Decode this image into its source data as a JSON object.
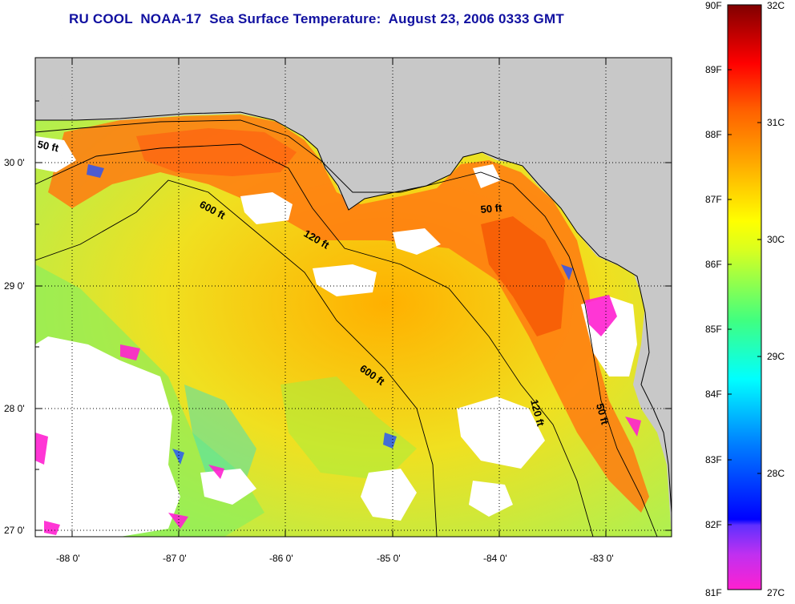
{
  "title": "RU COOL  NOAA-17  Sea Surface Temperature:  August 23, 2006 0333 GMT",
  "map": {
    "lat_labels": [
      "30 0'",
      "29 0'",
      "28 0'",
      "27 0'"
    ],
    "lon_labels": [
      "-88 0'",
      "-87 0'",
      "-86 0'",
      "-85 0'",
      "-84 0'",
      "-83 0'"
    ],
    "lat_range": [
      26.95,
      30.95
    ],
    "lon_range": [
      -88.3,
      -82.45
    ],
    "contours": [
      "50 ft",
      "600 ft",
      "120 ft",
      "50 ft",
      "600 ft",
      "120 ft",
      "50 ft"
    ],
    "colors": {
      "land": "#c8c8c8",
      "cloud": "#ffffff",
      "frame": "#000000"
    }
  },
  "colorbar": {
    "fahrenheit": [
      "90F",
      "89F",
      "88F",
      "87F",
      "86F",
      "85F",
      "84F",
      "83F",
      "82F",
      "81F"
    ],
    "celsius": [
      "32C",
      "31C",
      "30C",
      "29C",
      "28C",
      "27C"
    ],
    "range_f": [
      81,
      90
    ],
    "range_c": [
      27.22,
      32.22
    ]
  }
}
